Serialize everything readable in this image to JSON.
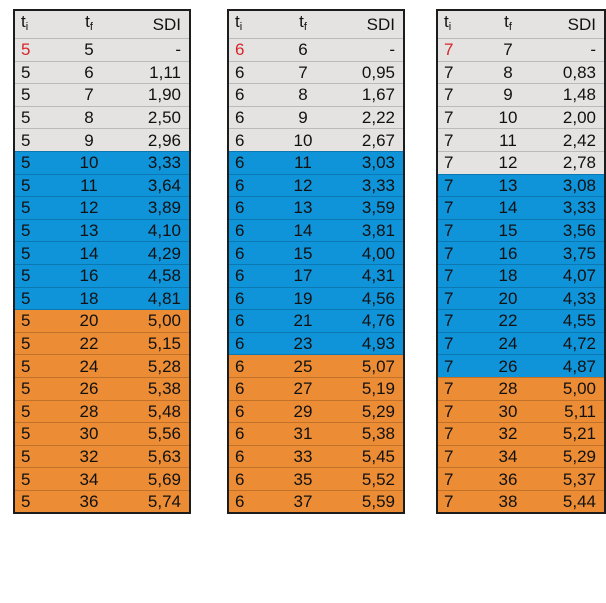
{
  "headers": {
    "ti": "t",
    "ti_sub": "i",
    "tf": "t",
    "tf_sub": "f",
    "sdi": "SDI"
  },
  "colors": {
    "gray": "#e4e3e1",
    "blue": "#0f93d9",
    "orange": "#ec8c34",
    "first_ti": "#d6262a"
  },
  "tables": [
    {
      "rows": [
        {
          "ti": "5",
          "tf": "5",
          "sdi": "-",
          "band": "gray"
        },
        {
          "ti": "5",
          "tf": "6",
          "sdi": "1,11",
          "band": "gray"
        },
        {
          "ti": "5",
          "tf": "7",
          "sdi": "1,90",
          "band": "gray"
        },
        {
          "ti": "5",
          "tf": "8",
          "sdi": "2,50",
          "band": "gray"
        },
        {
          "ti": "5",
          "tf": "9",
          "sdi": "2,96",
          "band": "gray"
        },
        {
          "ti": "5",
          "tf": "10",
          "sdi": "3,33",
          "band": "blue"
        },
        {
          "ti": "5",
          "tf": "11",
          "sdi": "3,64",
          "band": "blue"
        },
        {
          "ti": "5",
          "tf": "12",
          "sdi": "3,89",
          "band": "blue"
        },
        {
          "ti": "5",
          "tf": "13",
          "sdi": "4,10",
          "band": "blue"
        },
        {
          "ti": "5",
          "tf": "14",
          "sdi": "4,29",
          "band": "blue"
        },
        {
          "ti": "5",
          "tf": "16",
          "sdi": "4,58",
          "band": "blue"
        },
        {
          "ti": "5",
          "tf": "18",
          "sdi": "4,81",
          "band": "blue"
        },
        {
          "ti": "5",
          "tf": "20",
          "sdi": "5,00",
          "band": "orange"
        },
        {
          "ti": "5",
          "tf": "22",
          "sdi": "5,15",
          "band": "orange"
        },
        {
          "ti": "5",
          "tf": "24",
          "sdi": "5,28",
          "band": "orange"
        },
        {
          "ti": "5",
          "tf": "26",
          "sdi": "5,38",
          "band": "orange"
        },
        {
          "ti": "5",
          "tf": "28",
          "sdi": "5,48",
          "band": "orange"
        },
        {
          "ti": "5",
          "tf": "30",
          "sdi": "5,56",
          "band": "orange"
        },
        {
          "ti": "5",
          "tf": "32",
          "sdi": "5,63",
          "band": "orange"
        },
        {
          "ti": "5",
          "tf": "34",
          "sdi": "5,69",
          "band": "orange"
        },
        {
          "ti": "5",
          "tf": "36",
          "sdi": "5,74",
          "band": "orange"
        }
      ]
    },
    {
      "rows": [
        {
          "ti": "6",
          "tf": "6",
          "sdi": "-",
          "band": "gray"
        },
        {
          "ti": "6",
          "tf": "7",
          "sdi": "0,95",
          "band": "gray"
        },
        {
          "ti": "6",
          "tf": "8",
          "sdi": "1,67",
          "band": "gray"
        },
        {
          "ti": "6",
          "tf": "9",
          "sdi": "2,22",
          "band": "gray"
        },
        {
          "ti": "6",
          "tf": "10",
          "sdi": "2,67",
          "band": "gray"
        },
        {
          "ti": "6",
          "tf": "11",
          "sdi": "3,03",
          "band": "blue"
        },
        {
          "ti": "6",
          "tf": "12",
          "sdi": "3,33",
          "band": "blue"
        },
        {
          "ti": "6",
          "tf": "13",
          "sdi": "3,59",
          "band": "blue"
        },
        {
          "ti": "6",
          "tf": "14",
          "sdi": "3,81",
          "band": "blue"
        },
        {
          "ti": "6",
          "tf": "15",
          "sdi": "4,00",
          "band": "blue"
        },
        {
          "ti": "6",
          "tf": "17",
          "sdi": "4,31",
          "band": "blue"
        },
        {
          "ti": "6",
          "tf": "19",
          "sdi": "4,56",
          "band": "blue"
        },
        {
          "ti": "6",
          "tf": "21",
          "sdi": "4,76",
          "band": "blue"
        },
        {
          "ti": "6",
          "tf": "23",
          "sdi": "4,93",
          "band": "blue"
        },
        {
          "ti": "6",
          "tf": "25",
          "sdi": "5,07",
          "band": "orange"
        },
        {
          "ti": "6",
          "tf": "27",
          "sdi": "5,19",
          "band": "orange"
        },
        {
          "ti": "6",
          "tf": "29",
          "sdi": "5,29",
          "band": "orange"
        },
        {
          "ti": "6",
          "tf": "31",
          "sdi": "5,38",
          "band": "orange"
        },
        {
          "ti": "6",
          "tf": "33",
          "sdi": "5,45",
          "band": "orange"
        },
        {
          "ti": "6",
          "tf": "35",
          "sdi": "5,52",
          "band": "orange"
        },
        {
          "ti": "6",
          "tf": "37",
          "sdi": "5,59",
          "band": "orange"
        }
      ]
    },
    {
      "rows": [
        {
          "ti": "7",
          "tf": "7",
          "sdi": "-",
          "band": "gray"
        },
        {
          "ti": "7",
          "tf": "8",
          "sdi": "0,83",
          "band": "gray"
        },
        {
          "ti": "7",
          "tf": "9",
          "sdi": "1,48",
          "band": "gray"
        },
        {
          "ti": "7",
          "tf": "10",
          "sdi": "2,00",
          "band": "gray"
        },
        {
          "ti": "7",
          "tf": "11",
          "sdi": "2,42",
          "band": "gray"
        },
        {
          "ti": "7",
          "tf": "12",
          "sdi": "2,78",
          "band": "gray"
        },
        {
          "ti": "7",
          "tf": "13",
          "sdi": "3,08",
          "band": "blue"
        },
        {
          "ti": "7",
          "tf": "14",
          "sdi": "3,33",
          "band": "blue"
        },
        {
          "ti": "7",
          "tf": "15",
          "sdi": "3,56",
          "band": "blue"
        },
        {
          "ti": "7",
          "tf": "16",
          "sdi": "3,75",
          "band": "blue"
        },
        {
          "ti": "7",
          "tf": "18",
          "sdi": "4,07",
          "band": "blue"
        },
        {
          "ti": "7",
          "tf": "20",
          "sdi": "4,33",
          "band": "blue"
        },
        {
          "ti": "7",
          "tf": "22",
          "sdi": "4,55",
          "band": "blue"
        },
        {
          "ti": "7",
          "tf": "24",
          "sdi": "4,72",
          "band": "blue"
        },
        {
          "ti": "7",
          "tf": "26",
          "sdi": "4,87",
          "band": "blue"
        },
        {
          "ti": "7",
          "tf": "28",
          "sdi": "5,00",
          "band": "orange"
        },
        {
          "ti": "7",
          "tf": "30",
          "sdi": "5,11",
          "band": "orange"
        },
        {
          "ti": "7",
          "tf": "32",
          "sdi": "5,21",
          "band": "orange"
        },
        {
          "ti": "7",
          "tf": "34",
          "sdi": "5,29",
          "band": "orange"
        },
        {
          "ti": "7",
          "tf": "36",
          "sdi": "5,37",
          "band": "orange"
        },
        {
          "ti": "7",
          "tf": "38",
          "sdi": "5,44",
          "band": "orange"
        }
      ]
    }
  ]
}
